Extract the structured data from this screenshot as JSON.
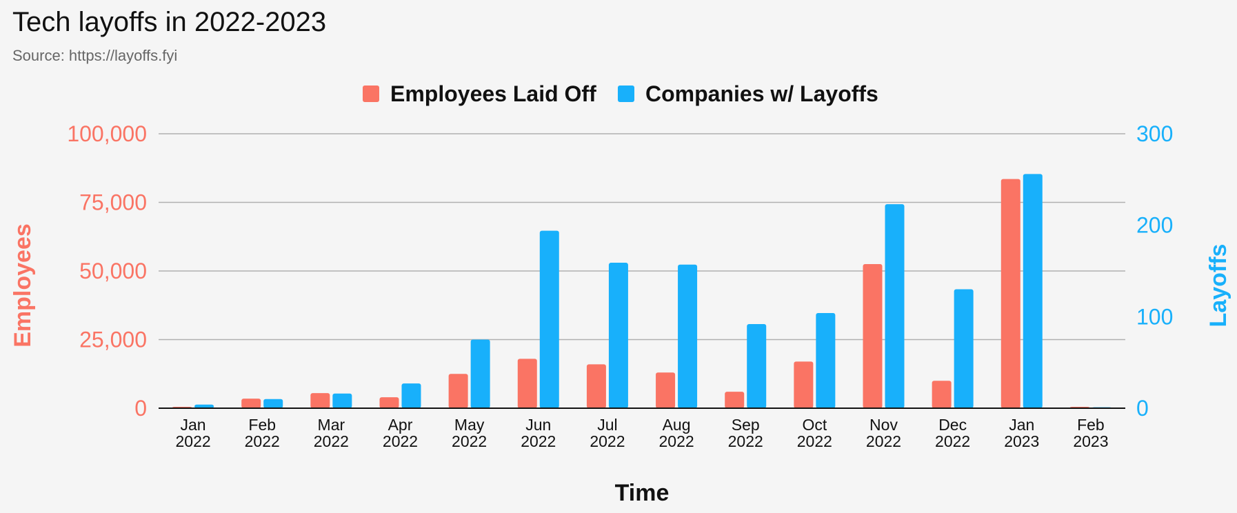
{
  "title": "Tech layoffs in 2022-2023",
  "subtitle": "Source: https://layoffs.fyi",
  "colors": {
    "employees": "#fa7464",
    "companies": "#18b0fb",
    "grid": "#b0b0b0",
    "axis": "#111111",
    "background": "#f5f5f5"
  },
  "chart_data": {
    "type": "bar",
    "categories": [
      [
        "Jan",
        "2022"
      ],
      [
        "Feb",
        "2022"
      ],
      [
        "Mar",
        "2022"
      ],
      [
        "Apr",
        "2022"
      ],
      [
        "May",
        "2022"
      ],
      [
        "Jun",
        "2022"
      ],
      [
        "Jul",
        "2022"
      ],
      [
        "Aug",
        "2022"
      ],
      [
        "Sep",
        "2022"
      ],
      [
        "Oct",
        "2022"
      ],
      [
        "Nov",
        "2022"
      ],
      [
        "Dec",
        "2022"
      ],
      [
        "Jan",
        "2023"
      ],
      [
        "Feb",
        "2023"
      ]
    ],
    "series": [
      {
        "name": "Employees Laid Off",
        "axis": "left",
        "values": [
          500,
          3500,
          5500,
          4000,
          12500,
          18000,
          16000,
          13000,
          6000,
          17000,
          52500,
          10000,
          83500,
          500
        ]
      },
      {
        "name": "Companies w/ Layoffs",
        "axis": "right",
        "values": [
          4,
          10,
          16,
          27,
          75,
          194,
          159,
          157,
          92,
          104,
          223,
          130,
          256,
          1
        ]
      }
    ],
    "xlabel": "Time",
    "ylabel_left": "Employees",
    "ylabel_right": "Layoffs",
    "ylim_left": [
      0,
      100000
    ],
    "ylim_right": [
      0,
      300
    ],
    "yticks_left": [
      "0",
      "25,000",
      "50,000",
      "75,000",
      "100,000"
    ],
    "yticks_right": [
      "0",
      "100",
      "200",
      "300"
    ],
    "grid": true,
    "legend": "top-center"
  }
}
